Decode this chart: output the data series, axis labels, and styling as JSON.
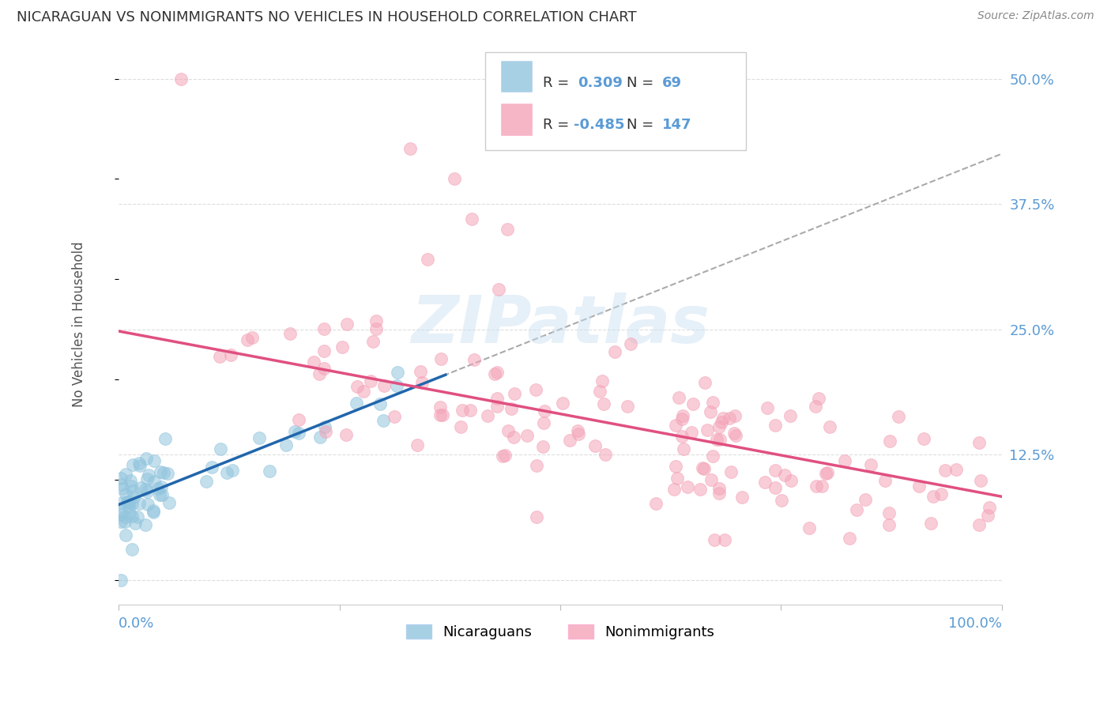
{
  "title": "NICARAGUAN VS NONIMMIGRANTS NO VEHICLES IN HOUSEHOLD CORRELATION CHART",
  "source": "Source: ZipAtlas.com",
  "ylabel": "No Vehicles in Household",
  "xlim": [
    0.0,
    1.0
  ],
  "ylim": [
    -0.025,
    0.535
  ],
  "yticks": [
    0.0,
    0.125,
    0.25,
    0.375,
    0.5
  ],
  "ytick_labels": [
    "",
    "12.5%",
    "25.0%",
    "37.5%",
    "50.0%"
  ],
  "blue_color": "#92c5de",
  "pink_color": "#f4a4b8",
  "blue_line_color": "#2166ac",
  "pink_line_color": "#e05080",
  "dashed_line_color": "#aaaaaa",
  "watermark": "ZIPatlas",
  "title_color": "#333333",
  "axis_label_color": "#5b9bd5",
  "background_color": "#ffffff",
  "grid_color": "#dddddd",
  "legend_text_color": "#333333",
  "legend_r_color": "#5b9bd5",
  "blue_line_slope": 0.35,
  "blue_line_intercept": 0.075,
  "pink_line_slope": -0.165,
  "pink_line_intercept": 0.248
}
